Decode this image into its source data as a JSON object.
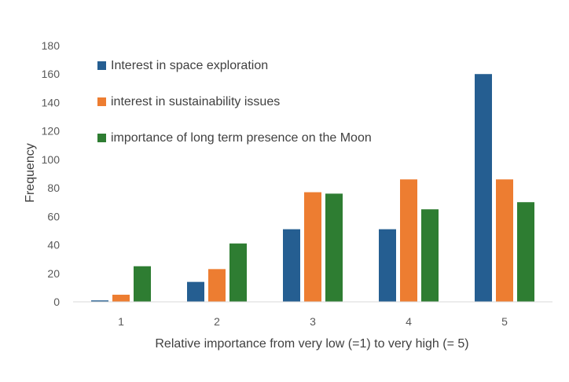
{
  "chart_data": {
    "type": "bar",
    "categories": [
      "1",
      "2",
      "3",
      "4",
      "5"
    ],
    "series": [
      {
        "name": "Interest in space exploration",
        "color": "#255e91",
        "values": [
          1,
          14,
          51,
          51,
          160
        ]
      },
      {
        "name": "interest in sustainability issues",
        "color": "#ed7d31",
        "values": [
          5,
          23,
          77,
          86,
          86
        ]
      },
      {
        "name": "importance of long term presence on the Moon",
        "color": "#2e7d32",
        "values": [
          25,
          41,
          76,
          65,
          70
        ]
      }
    ],
    "xlabel": "Relative importance from very low (=1) to very high (= 5)",
    "ylabel": "Frequency",
    "ylim": [
      0,
      180
    ],
    "yticks": [
      0,
      20,
      40,
      60,
      80,
      100,
      120,
      140,
      160,
      180
    ],
    "grid": false,
    "legend": "top-left"
  }
}
